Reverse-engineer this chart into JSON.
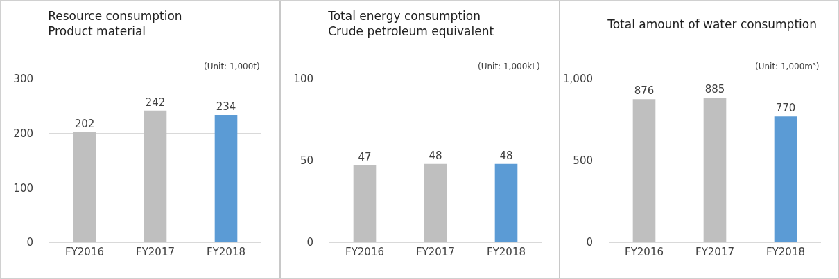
{
  "chart_data": [
    {
      "type": "bar",
      "title": "Resource consumption\nProduct material",
      "annotations": [
        "(Unit: 1,000t)"
      ],
      "categories": [
        "FY2016",
        "FY2017",
        "FY2018"
      ],
      "values": [
        202,
        242,
        234
      ],
      "colors": [
        "#bfbfbf",
        "#bfbfbf",
        "#5b9bd5"
      ],
      "ylim": [
        0,
        300
      ],
      "yticks": [
        0,
        100,
        200,
        300
      ],
      "grid": "y",
      "data_labels": true
    },
    {
      "type": "bar",
      "title": "Total energy consumption\nCrude petroleum equivalent",
      "annotations": [
        "(Unit: 1,000kL)"
      ],
      "categories": [
        "FY2016",
        "FY2017",
        "FY2018"
      ],
      "values": [
        47,
        48,
        48
      ],
      "colors": [
        "#bfbfbf",
        "#bfbfbf",
        "#5b9bd5"
      ],
      "ylim": [
        0,
        100
      ],
      "yticks": [
        0,
        50,
        100
      ],
      "grid": "y",
      "data_labels": true
    },
    {
      "type": "bar",
      "title": "Total amount of water consumption",
      "annotations": [
        "(Unit: 1,000m³)"
      ],
      "categories": [
        "FY2016",
        "FY2017",
        "FY2018"
      ],
      "values": [
        876,
        885,
        770
      ],
      "colors": [
        "#bfbfbf",
        "#bfbfbf",
        "#5b9bd5"
      ],
      "ylim": [
        0,
        1000
      ],
      "yticks": [
        0,
        500,
        {
          "value": 1000,
          "label": "1,000"
        }
      ],
      "grid": "y",
      "data_labels": true
    }
  ]
}
